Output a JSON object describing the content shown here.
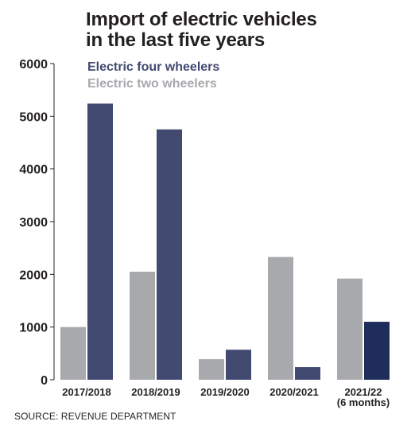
{
  "chart_data": {
    "type": "bar",
    "title_lines": [
      "Import of electric vehicles",
      "in the last five years"
    ],
    "categories": [
      [
        "2017/2018"
      ],
      [
        "2018/2019"
      ],
      [
        "2019/2020"
      ],
      [
        "2020/2021"
      ],
      [
        "2021/22",
        "(6 months)"
      ]
    ],
    "series": [
      {
        "name": "Electric two wheelers",
        "color": "#a7a9ac",
        "values": [
          1000,
          2050,
          390,
          2330,
          1920
        ]
      },
      {
        "name": "Electric four wheelers",
        "color": "#424a72",
        "values": [
          5240,
          4750,
          570,
          240,
          1100
        ],
        "last_color": "#1f2d5a"
      }
    ],
    "legend_order": [
      "Electric four wheelers",
      "Electric two wheelers"
    ],
    "y_ticks": [
      0,
      1000,
      2000,
      3000,
      4000,
      5000,
      6000
    ],
    "ylim": [
      0,
      6000
    ],
    "grid": false,
    "legend_position": "top-left"
  },
  "source": "SOURCE: REVENUE DEPARTMENT"
}
